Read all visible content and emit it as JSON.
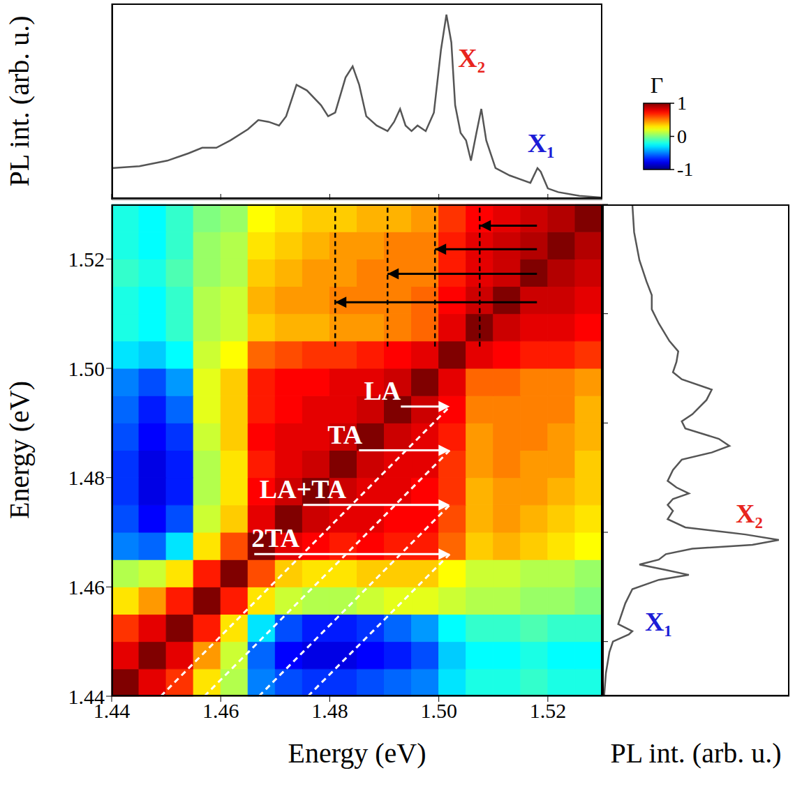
{
  "chart_data": [
    {
      "type": "heatmap",
      "xlabel": "Energy (eV)",
      "ylabel": "Energy (eV)",
      "xlim": [
        1.44,
        1.53
      ],
      "ylim": [
        1.44,
        1.53
      ],
      "xticks": [
        1.44,
        1.46,
        1.48,
        {
          "value": 1.5,
          "label": "1.50"
        },
        1.52
      ],
      "yticks": [
        1.44,
        1.46,
        1.48,
        {
          "value": 1.5,
          "label": "1.50"
        },
        1.52
      ],
      "x_edges": [
        1.44,
        1.445,
        1.45,
        1.455,
        1.46,
        1.465,
        1.47,
        1.475,
        1.48,
        1.485,
        1.49,
        1.495,
        1.5,
        1.505,
        1.51,
        1.515,
        1.52,
        1.525,
        1.53
      ],
      "y_edges": [
        1.44,
        1.445,
        1.45,
        1.455,
        1.46,
        1.465,
        1.47,
        1.475,
        1.48,
        1.485,
        1.49,
        1.495,
        1.5,
        1.505,
        1.51,
        1.515,
        1.52,
        1.525,
        1.53
      ],
      "z": [
        [
          1,
          0.8,
          0.65,
          0.3,
          0.1,
          -0.5,
          -0.6,
          -0.65,
          -0.65,
          -0.6,
          -0.55,
          -0.5,
          -0.3,
          -0.2,
          -0.2,
          -0.15,
          -0.2,
          -0.2
        ],
        [
          0.8,
          1,
          0.8,
          0.45,
          0.15,
          -0.55,
          -0.75,
          -0.8,
          -0.8,
          -0.75,
          -0.7,
          -0.6,
          -0.35,
          -0.25,
          -0.25,
          -0.2,
          -0.25,
          -0.25
        ],
        [
          0.65,
          0.8,
          1,
          0.7,
          0.3,
          -0.3,
          -0.6,
          -0.7,
          -0.7,
          -0.65,
          -0.55,
          -0.45,
          -0.25,
          -0.15,
          -0.15,
          -0.1,
          -0.15,
          -0.15
        ],
        [
          0.3,
          0.45,
          0.7,
          1,
          0.7,
          0.3,
          0.15,
          0.1,
          0.1,
          0.15,
          0.2,
          0.2,
          0.15,
          0.1,
          0.1,
          0.05,
          0.05,
          0.0
        ],
        [
          0.1,
          0.15,
          0.3,
          0.7,
          1,
          0.6,
          0.35,
          0.3,
          0.3,
          0.35,
          0.35,
          0.35,
          0.25,
          0.15,
          0.15,
          0.1,
          0.1,
          0.05
        ],
        [
          -0.5,
          -0.55,
          -0.3,
          0.3,
          0.6,
          1,
          0.8,
          0.75,
          0.7,
          0.75,
          0.7,
          0.7,
          0.55,
          0.35,
          0.4,
          0.35,
          0.3,
          0.25
        ],
        [
          -0.6,
          -0.75,
          -0.6,
          0.15,
          0.35,
          0.8,
          1,
          0.85,
          0.8,
          0.8,
          0.75,
          0.75,
          0.6,
          0.4,
          0.45,
          0.4,
          0.35,
          0.3
        ],
        [
          -0.65,
          -0.8,
          -0.7,
          0.1,
          0.3,
          0.75,
          0.85,
          1,
          0.85,
          0.8,
          0.8,
          0.75,
          0.65,
          0.4,
          0.45,
          0.45,
          0.4,
          0.35
        ],
        [
          -0.65,
          -0.8,
          -0.7,
          0.1,
          0.3,
          0.7,
          0.8,
          0.85,
          1,
          0.85,
          0.8,
          0.8,
          0.65,
          0.45,
          0.5,
          0.45,
          0.45,
          0.35
        ],
        [
          -0.6,
          -0.75,
          -0.65,
          0.15,
          0.35,
          0.75,
          0.8,
          0.8,
          0.85,
          1,
          0.85,
          0.8,
          0.7,
          0.45,
          0.5,
          0.5,
          0.45,
          0.4
        ],
        [
          -0.55,
          -0.7,
          -0.55,
          0.2,
          0.35,
          0.7,
          0.75,
          0.8,
          0.8,
          0.85,
          1,
          0.85,
          0.75,
          0.5,
          0.5,
          0.5,
          0.5,
          0.4
        ],
        [
          -0.5,
          -0.6,
          -0.45,
          0.2,
          0.35,
          0.7,
          0.75,
          0.75,
          0.8,
          0.8,
          0.85,
          1,
          0.8,
          0.55,
          0.55,
          0.5,
          0.5,
          0.45
        ],
        [
          -0.3,
          -0.35,
          -0.25,
          0.15,
          0.25,
          0.55,
          0.6,
          0.65,
          0.65,
          0.7,
          0.75,
          0.8,
          1,
          0.8,
          0.75,
          0.7,
          0.7,
          0.65
        ],
        [
          -0.2,
          -0.25,
          -0.15,
          0.1,
          0.15,
          0.35,
          0.4,
          0.4,
          0.45,
          0.45,
          0.5,
          0.55,
          0.8,
          1,
          0.85,
          0.8,
          0.8,
          0.75
        ],
        [
          -0.2,
          -0.25,
          -0.15,
          0.1,
          0.15,
          0.4,
          0.45,
          0.45,
          0.5,
          0.5,
          0.5,
          0.55,
          0.75,
          0.85,
          1,
          0.85,
          0.85,
          0.8
        ],
        [
          -0.15,
          -0.2,
          -0.1,
          0.05,
          0.1,
          0.35,
          0.4,
          0.45,
          0.45,
          0.5,
          0.5,
          0.5,
          0.7,
          0.8,
          0.85,
          1,
          0.9,
          0.85
        ],
        [
          -0.2,
          -0.25,
          -0.15,
          0.05,
          0.1,
          0.3,
          0.35,
          0.4,
          0.45,
          0.45,
          0.5,
          0.5,
          0.7,
          0.8,
          0.85,
          0.9,
          1,
          0.9
        ],
        [
          -0.2,
          -0.25,
          -0.15,
          0.0,
          0.05,
          0.25,
          0.3,
          0.35,
          0.35,
          0.4,
          0.4,
          0.45,
          0.65,
          0.75,
          0.8,
          0.85,
          0.9,
          1
        ]
      ],
      "colorbar": {
        "label": "Γ",
        "range": [
          -1,
          1
        ],
        "ticks": [
          -1,
          0,
          1
        ]
      },
      "phonon_replicas": {
        "from": 1.502,
        "replicas": [
          {
            "label": "LA",
            "offset": 0.009
          },
          {
            "label": "TA",
            "offset": 0.017
          },
          {
            "label": "LA+TA",
            "offset": 0.027
          },
          {
            "label": "2TA",
            "offset": 0.036
          }
        ]
      },
      "x1_replicas": {
        "from": 1.518,
        "y_from": 1.504,
        "lines": [
          {
            "x": 1.5075,
            "arrow_y": 1.5261
          },
          {
            "x": 1.4993,
            "arrow_y": 1.5218
          },
          {
            "x": 1.4906,
            "arrow_y": 1.5173
          },
          {
            "x": 1.481,
            "arrow_y": 1.5121
          }
        ]
      }
    },
    {
      "type": "line",
      "ylabel": "PL int. (arb. u.)",
      "xlim": [
        1.44,
        1.53
      ],
      "xticks": [
        1.44,
        1.46,
        1.48,
        1.5,
        1.52
      ],
      "ylim": [
        0,
        1.06
      ],
      "tick_labels": false,
      "color": "#555555",
      "x": [
        1.44,
        1.4451,
        1.4502,
        1.4541,
        1.4566,
        1.4592,
        1.4618,
        1.465,
        1.4669,
        1.4688,
        1.4707,
        1.472,
        1.4739,
        1.4758,
        1.4784,
        1.4797,
        1.481,
        1.4829,
        1.4842,
        1.4854,
        1.4867,
        1.4886,
        1.4906,
        1.4918,
        1.4929,
        1.4939,
        1.495,
        1.4961,
        1.4976,
        1.4991,
        1.5004,
        1.5014,
        1.5023,
        1.503,
        1.504,
        1.505,
        1.5059,
        1.5069,
        1.5078,
        1.5087,
        1.5104,
        1.513,
        1.5168,
        1.5181,
        1.5187,
        1.52,
        1.5219,
        1.5258,
        1.53
      ],
      "values": [
        0.17,
        0.18,
        0.21,
        0.25,
        0.28,
        0.28,
        0.32,
        0.38,
        0.43,
        0.42,
        0.4,
        0.45,
        0.62,
        0.59,
        0.51,
        0.45,
        0.47,
        0.66,
        0.72,
        0.62,
        0.45,
        0.4,
        0.37,
        0.42,
        0.49,
        0.4,
        0.37,
        0.4,
        0.37,
        0.47,
        0.81,
        1.0,
        0.85,
        0.51,
        0.36,
        0.32,
        0.21,
        0.36,
        0.49,
        0.32,
        0.17,
        0.13,
        0.09,
        0.17,
        0.15,
        0.06,
        0.04,
        0.02,
        0.01
      ],
      "peak_labels": [
        {
          "text": "X₁",
          "x": 1.518,
          "color": "#1c1cd6"
        },
        {
          "text": "X₂",
          "x": 1.502,
          "color": "#e8251e"
        }
      ]
    }
  ]
}
